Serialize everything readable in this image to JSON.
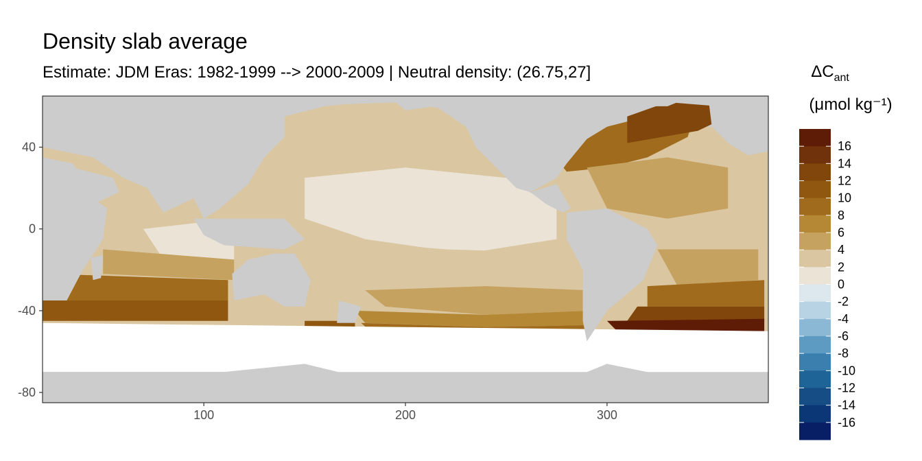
{
  "title": "Density slab average",
  "subtitle": "Estimate: JDM Eras: 1982-1999 --> 2000-2009 | Neutral density: (26.75,27]",
  "chart_data": {
    "type": "heatmap",
    "description_kind": "global ocean map, longitude vs latitude, filled by binned anthropogenic carbon change",
    "xlim": [
      20,
      380
    ],
    "ylim": [
      -85,
      65
    ],
    "x_ticks": [
      100,
      200,
      300
    ],
    "y_ticks": [
      40,
      0,
      -40,
      -80
    ],
    "grid": true,
    "colors": {
      "land": "#cccccc",
      "no_data": "#ffffff",
      "grid": "#ebebeb"
    },
    "legend": {
      "title_main": "ΔC",
      "title_sub": "ant",
      "units": "(μmol kg⁻¹)",
      "placement": "right",
      "labels": [
        "16",
        "14",
        "12",
        "10",
        "8",
        "6",
        "4",
        "2",
        "0",
        "-2",
        "-4",
        "-6",
        "-8",
        "-10",
        "-12",
        "-14",
        "-16"
      ],
      "colors": [
        "#5e1c06",
        "#70320a",
        "#80460b",
        "#8f570f",
        "#a06b1c",
        "#b58836",
        "#c6a260",
        "#dac6a0",
        "#eae3d6",
        "#dce7ee",
        "#b8d3e4",
        "#8ab8d5",
        "#5e9bc3",
        "#3a7fae",
        "#1f6496",
        "#154d84",
        "#0c3777",
        "#081f65"
      ]
    },
    "regions": [
      {
        "fill": "#dac6a0",
        "points": [
          [
            140,
            60
          ],
          [
            200,
            62
          ],
          [
            240,
            55
          ],
          [
            260,
            45
          ],
          [
            245,
            35
          ],
          [
            200,
            32
          ],
          [
            160,
            35
          ],
          [
            140,
            45
          ]
        ]
      },
      {
        "fill": "#eae3d6",
        "points": [
          [
            150,
            25
          ],
          [
            200,
            30
          ],
          [
            250,
            25
          ],
          [
            275,
            10
          ],
          [
            275,
            -5
          ],
          [
            230,
            -12
          ],
          [
            180,
            -5
          ],
          [
            150,
            5
          ]
        ]
      },
      {
        "fill": "#dac6a0",
        "points": [
          [
            160,
            -5
          ],
          [
            220,
            -10
          ],
          [
            285,
            -12
          ],
          [
            290,
            -30
          ],
          [
            240,
            -28
          ],
          [
            200,
            -22
          ],
          [
            170,
            -18
          ]
        ]
      },
      {
        "fill": "#c6a260",
        "points": [
          [
            180,
            -30
          ],
          [
            240,
            -28
          ],
          [
            290,
            -30
          ],
          [
            292,
            -40
          ],
          [
            240,
            -42
          ],
          [
            190,
            -38
          ]
        ]
      },
      {
        "fill": "#b58836",
        "points": [
          [
            175,
            -40
          ],
          [
            240,
            -42
          ],
          [
            292,
            -40
          ],
          [
            293,
            -47
          ],
          [
            240,
            -48
          ],
          [
            180,
            -46
          ]
        ]
      },
      {
        "fill": "#a06b1c",
        "points": [
          [
            178,
            -46
          ],
          [
            240,
            -48
          ],
          [
            293,
            -47
          ],
          [
            294,
            -55
          ],
          [
            250,
            -52
          ],
          [
            185,
            -52
          ]
        ]
      },
      {
        "fill": "#8f570f",
        "points": [
          [
            150,
            -45
          ],
          [
            175,
            -45
          ],
          [
            175,
            -52
          ],
          [
            150,
            -52
          ]
        ]
      },
      {
        "fill": "#dac6a0",
        "points": [
          [
            40,
            20
          ],
          [
            75,
            22
          ],
          [
            95,
            10
          ],
          [
            95,
            -8
          ],
          [
            60,
            -10
          ],
          [
            40,
            5
          ]
        ]
      },
      {
        "fill": "#eae3d6",
        "points": [
          [
            70,
            0
          ],
          [
            115,
            5
          ],
          [
            115,
            -15
          ],
          [
            80,
            -15
          ]
        ]
      },
      {
        "fill": "#c6a260",
        "points": [
          [
            50,
            -10
          ],
          [
            115,
            -15
          ],
          [
            115,
            -25
          ],
          [
            50,
            -22
          ]
        ]
      },
      {
        "fill": "#a06b1c",
        "points": [
          [
            25,
            -22
          ],
          [
            112,
            -25
          ],
          [
            112,
            -35
          ],
          [
            25,
            -35
          ]
        ]
      },
      {
        "fill": "#8f570f",
        "points": [
          [
            20,
            -35
          ],
          [
            112,
            -35
          ],
          [
            112,
            -45
          ],
          [
            20,
            -45
          ]
        ]
      },
      {
        "fill": "#a06b1c",
        "points": [
          [
            270,
            40
          ],
          [
            300,
            50
          ],
          [
            320,
            55
          ],
          [
            345,
            60
          ],
          [
            340,
            45
          ],
          [
            320,
            35
          ],
          [
            300,
            30
          ],
          [
            280,
            28
          ]
        ]
      },
      {
        "fill": "#c6a260",
        "points": [
          [
            290,
            30
          ],
          [
            330,
            35
          ],
          [
            360,
            30
          ],
          [
            360,
            10
          ],
          [
            330,
            5
          ],
          [
            300,
            10
          ]
        ]
      },
      {
        "fill": "#dac6a0",
        "points": [
          [
            315,
            5
          ],
          [
            360,
            5
          ],
          [
            360,
            -10
          ],
          [
            330,
            -10
          ]
        ]
      },
      {
        "fill": "#c6a260",
        "points": [
          [
            325,
            -10
          ],
          [
            375,
            -10
          ],
          [
            375,
            -25
          ],
          [
            335,
            -28
          ]
        ]
      },
      {
        "fill": "#a06b1c",
        "points": [
          [
            320,
            -28
          ],
          [
            378,
            -25
          ],
          [
            378,
            -38
          ],
          [
            320,
            -38
          ]
        ]
      },
      {
        "fill": "#80460b",
        "points": [
          [
            315,
            -38
          ],
          [
            378,
            -38
          ],
          [
            378,
            -45
          ],
          [
            310,
            -45
          ]
        ]
      },
      {
        "fill": "#5e1c06",
        "points": [
          [
            300,
            -45
          ],
          [
            378,
            -44
          ],
          [
            378,
            -50
          ],
          [
            305,
            -50
          ]
        ]
      },
      {
        "fill": "#80460b",
        "points": [
          [
            310,
            42
          ],
          [
            345,
            48
          ],
          [
            360,
            55
          ],
          [
            355,
            60
          ],
          [
            330,
            62
          ],
          [
            310,
            55
          ]
        ]
      }
    ],
    "land": [
      {
        "name": "africa",
        "points": [
          [
            20,
            35
          ],
          [
            35,
            32
          ],
          [
            45,
            15
          ],
          [
            52,
            10
          ],
          [
            50,
            -5
          ],
          [
            40,
            -20
          ],
          [
            32,
            -35
          ],
          [
            20,
            -35
          ]
        ]
      },
      {
        "name": "madagascar",
        "points": [
          [
            44,
            -14
          ],
          [
            50,
            -13
          ],
          [
            49,
            -24
          ],
          [
            45,
            -25
          ]
        ]
      },
      {
        "name": "arabia",
        "points": [
          [
            35,
            30
          ],
          [
            55,
            25
          ],
          [
            58,
            18
          ],
          [
            45,
            12
          ],
          [
            40,
            20
          ]
        ]
      },
      {
        "name": "asia",
        "points": [
          [
            20,
            65
          ],
          [
            180,
            66
          ],
          [
            180,
            62
          ],
          [
            160,
            60
          ],
          [
            140,
            55
          ],
          [
            140,
            45
          ],
          [
            130,
            35
          ],
          [
            122,
            22
          ],
          [
            108,
            10
          ],
          [
            100,
            5
          ],
          [
            95,
            15
          ],
          [
            80,
            8
          ],
          [
            72,
            20
          ],
          [
            60,
            25
          ],
          [
            45,
            35
          ],
          [
            20,
            40
          ]
        ]
      },
      {
        "name": "indonesia",
        "points": [
          [
            95,
            5
          ],
          [
            140,
            5
          ],
          [
            150,
            -5
          ],
          [
            140,
            -10
          ],
          [
            110,
            -8
          ],
          [
            100,
            -3
          ]
        ]
      },
      {
        "name": "australia",
        "points": [
          [
            114,
            -22
          ],
          [
            122,
            -15
          ],
          [
            135,
            -12
          ],
          [
            145,
            -12
          ],
          [
            153,
            -25
          ],
          [
            150,
            -38
          ],
          [
            140,
            -38
          ],
          [
            130,
            -32
          ],
          [
            115,
            -35
          ]
        ]
      },
      {
        "name": "new-zealand",
        "points": [
          [
            167,
            -35
          ],
          [
            178,
            -38
          ],
          [
            175,
            -46
          ],
          [
            166,
            -46
          ]
        ]
      },
      {
        "name": "north-america",
        "points": [
          [
            190,
            66
          ],
          [
            260,
            66
          ],
          [
            300,
            66
          ],
          [
            300,
            50
          ],
          [
            290,
            44
          ],
          [
            280,
            32
          ],
          [
            275,
            25
          ],
          [
            262,
            18
          ],
          [
            255,
            20
          ],
          [
            245,
            30
          ],
          [
            235,
            40
          ],
          [
            230,
            50
          ],
          [
            215,
            60
          ],
          [
            200,
            58
          ]
        ]
      },
      {
        "name": "central-america",
        "points": [
          [
            262,
            18
          ],
          [
            275,
            22
          ],
          [
            282,
            10
          ],
          [
            278,
            8
          ],
          [
            270,
            12
          ]
        ]
      },
      {
        "name": "greenland",
        "points": [
          [
            300,
            66
          ],
          [
            345,
            66
          ],
          [
            330,
            60
          ],
          [
            312,
            60
          ]
        ]
      },
      {
        "name": "south-america",
        "points": [
          [
            280,
            8
          ],
          [
            300,
            10
          ],
          [
            320,
            0
          ],
          [
            325,
            -8
          ],
          [
            318,
            -25
          ],
          [
            300,
            -40
          ],
          [
            290,
            -55
          ],
          [
            288,
            -45
          ],
          [
            288,
            -20
          ],
          [
            280,
            -5
          ]
        ]
      },
      {
        "name": "europe",
        "points": [
          [
            350,
            66
          ],
          [
            380,
            66
          ],
          [
            380,
            38
          ],
          [
            370,
            36
          ],
          [
            360,
            42
          ],
          [
            352,
            50
          ]
        ]
      },
      {
        "name": "antarctica",
        "points": [
          [
            20,
            -70
          ],
          [
            110,
            -70
          ],
          [
            150,
            -66
          ],
          [
            200,
            -78
          ],
          [
            250,
            -74
          ],
          [
            285,
            -72
          ],
          [
            300,
            -66
          ],
          [
            330,
            -72
          ],
          [
            380,
            -70
          ],
          [
            380,
            -85
          ],
          [
            20,
            -85
          ]
        ]
      }
    ],
    "nodata": [
      {
        "name": "southern-ocean-band",
        "points": [
          [
            20,
            -46
          ],
          [
            380,
            -50
          ],
          [
            380,
            -70
          ],
          [
            20,
            -70
          ]
        ]
      }
    ]
  }
}
